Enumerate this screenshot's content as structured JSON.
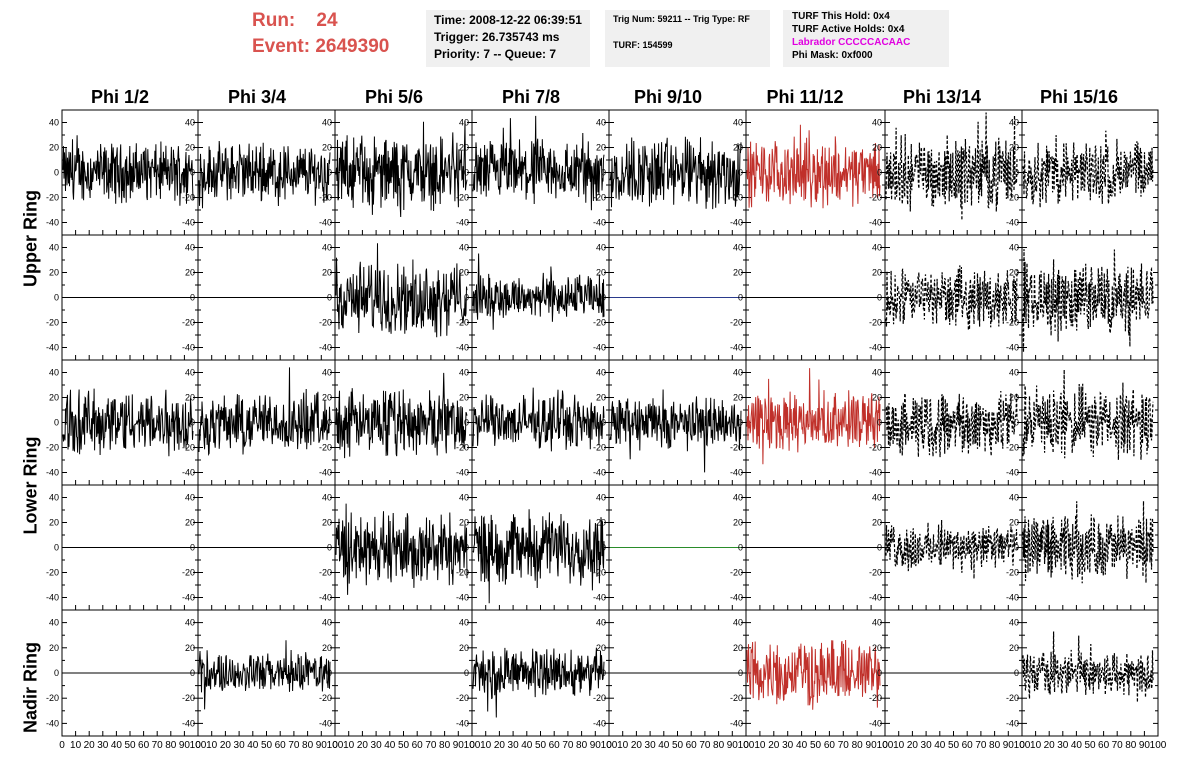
{
  "run_label": "Run:",
  "run_value": "24",
  "event_label": "Event:",
  "event_value": "2649390",
  "time_line": "Time: 2008-12-22 06:39:51",
  "trigger_line": "Trigger: 26.735743 ms",
  "priority_line": "Priority: 7 -- Queue: 7",
  "trig_line": "Trig Num: 59211 -- Trig Type: RF",
  "turf_line": "TURF: 154599",
  "turf_hold_line": "TURF This Hold: 0x4",
  "turf_active_line": "TURF Active Holds: 0x4",
  "labrador_line": "Labrador CCCCCACAAC",
  "phimask_line": "Phi Mask: 0xf000",
  "phi_labels": [
    "Phi 1/2",
    "Phi 3/4",
    "Phi 5/6",
    "Phi 7/8",
    "Phi 9/10",
    "Phi 11/12",
    "Phi 13/14",
    "Phi 15/16"
  ],
  "ring_labels": [
    "Upper Ring",
    "Lower Ring",
    "Nadir Ring"
  ],
  "y_tick_labels": [
    "40",
    "20",
    "0",
    "-20",
    "-40"
  ],
  "x_tick_labels": [
    "0",
    "10",
    "20",
    "30",
    "40",
    "50",
    "60",
    "70",
    "80",
    "90",
    "100"
  ],
  "colors": {
    "run_text": "#d9534f",
    "magenta_text": "#e000e0",
    "trace_solid": "#000000",
    "trace_red": "#c0302a",
    "trace_green": "#2a8c2a",
    "info_background": "#f0f0f0"
  },
  "panels": [
    [
      "solid",
      "solid",
      "solid",
      "solid",
      "solid",
      "red",
      "dashed",
      "dashed"
    ],
    [
      "flat",
      "flat",
      "solid",
      "solid",
      "flat-blue",
      "flat",
      "dashed",
      "dashed"
    ],
    [
      "solid",
      "solid",
      "solid",
      "solid",
      "solid",
      "red",
      "dashed",
      "dashed"
    ],
    [
      "flat",
      "flat",
      "solid",
      "solid",
      "flat-green",
      "flat",
      "dashed",
      "dashed"
    ],
    [
      "flat",
      "solid",
      "flat",
      "solid",
      "flat",
      "red",
      "flat",
      "dashed"
    ]
  ],
  "panel_amplitudes": [
    [
      18,
      18,
      22,
      20,
      22,
      20,
      22,
      20
    ],
    [
      0,
      0,
      22,
      14,
      0,
      0,
      18,
      22
    ],
    [
      20,
      18,
      20,
      16,
      16,
      18,
      20,
      22
    ],
    [
      0,
      0,
      22,
      22,
      0,
      0,
      14,
      20
    ],
    [
      0,
      12,
      0,
      15,
      0,
      20,
      0,
      14
    ]
  ]
}
